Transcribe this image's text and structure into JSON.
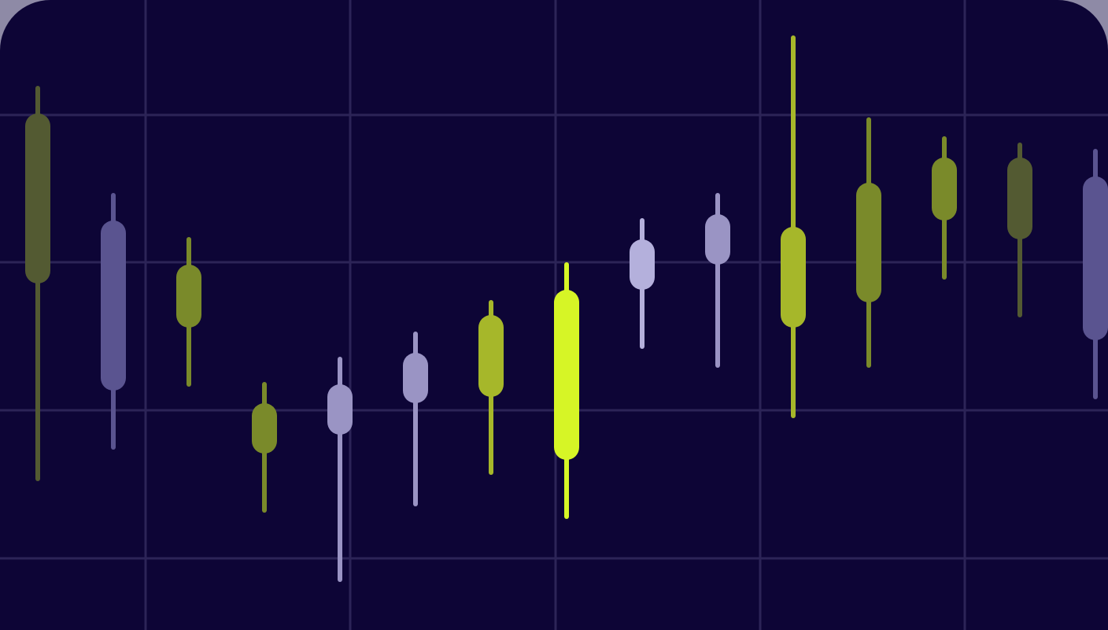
{
  "colors": {
    "background": "#0d0536",
    "grid": "#2c2457",
    "lime_bright": "#d6f526",
    "lime_mid": "#a6b72a",
    "olive": "#7a8a2a",
    "olive_dark": "#535a32",
    "lavender_light": "#b4b0dc",
    "lavender": "#9a94c4",
    "slate": "#5a5490"
  },
  "chart_data": {
    "type": "candlestick",
    "grid": true,
    "xlabel": "",
    "ylabel": "",
    "ylim": [
      0,
      100
    ],
    "candles": [
      {
        "x": 1,
        "open": 55,
        "close": 82,
        "high": 86,
        "low": 24,
        "color": "olive_dark"
      },
      {
        "x": 2,
        "open": 38,
        "close": 65,
        "high": 69,
        "low": 29,
        "color": "slate"
      },
      {
        "x": 3,
        "open": 48,
        "close": 58,
        "high": 62,
        "low": 39,
        "color": "olive"
      },
      {
        "x": 4,
        "open": 28,
        "close": 36,
        "high": 39,
        "low": 19,
        "color": "olive"
      },
      {
        "x": 5,
        "open": 31,
        "close": 39,
        "high": 43,
        "low": 8,
        "color": "lavender"
      },
      {
        "x": 6,
        "open": 36,
        "close": 44,
        "high": 47,
        "low": 20,
        "color": "lavender"
      },
      {
        "x": 7,
        "open": 37,
        "close": 50,
        "high": 52,
        "low": 25,
        "color": "lime_mid"
      },
      {
        "x": 8,
        "open": 27,
        "close": 54,
        "high": 58,
        "low": 18,
        "color": "lime_bright"
      },
      {
        "x": 9,
        "open": 54,
        "close": 62,
        "high": 65,
        "low": 45,
        "color": "lavender_light"
      },
      {
        "x": 10,
        "open": 58,
        "close": 66,
        "high": 69,
        "low": 42,
        "color": "lavender"
      },
      {
        "x": 11,
        "open": 48,
        "close": 64,
        "high": 94,
        "low": 34,
        "color": "lime_mid"
      },
      {
        "x": 12,
        "open": 52,
        "close": 71,
        "high": 81,
        "low": 42,
        "color": "olive"
      },
      {
        "x": 13,
        "open": 65,
        "close": 75,
        "high": 78,
        "low": 56,
        "color": "olive"
      },
      {
        "x": 14,
        "open": 62,
        "close": 75,
        "high": 77,
        "low": 50,
        "color": "olive_dark"
      },
      {
        "x": 15,
        "open": 46,
        "close": 72,
        "high": 76,
        "low": 37,
        "color": "slate"
      }
    ]
  }
}
